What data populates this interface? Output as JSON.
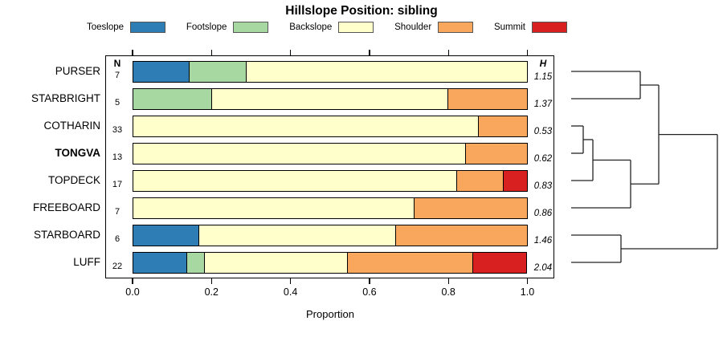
{
  "title": "Hillslope Position: sibling",
  "chart_data": {
    "type": "bar",
    "subtype": "horizontal-stacked-proportion",
    "title": "Hillslope Position: sibling",
    "xlabel": "Proportion",
    "xlim": [
      0,
      1
    ],
    "x_tick_labels": [
      "0.0",
      "0.2",
      "0.4",
      "0.6",
      "0.8",
      "1.0"
    ],
    "n_header": "N",
    "h_header": "H",
    "categories": [
      "Toeslope",
      "Footslope",
      "Backslope",
      "Shoulder",
      "Summit"
    ],
    "legend": [
      {
        "label": "Toeslope",
        "color": "#2E7EB5"
      },
      {
        "label": "Footslope",
        "color": "#A7D8A2"
      },
      {
        "label": "Backslope",
        "color": "#FFFFCC"
      },
      {
        "label": "Shoulder",
        "color": "#F9A75C"
      },
      {
        "label": "Summit",
        "color": "#D7201F"
      }
    ],
    "rows": [
      {
        "label": "PURSER",
        "bold": false,
        "n": "7",
        "h": "1.15",
        "segments": [
          {
            "category": "Toeslope",
            "value": 0.143
          },
          {
            "category": "Footslope",
            "value": 0.143
          },
          {
            "category": "Backslope",
            "value": 0.714
          }
        ]
      },
      {
        "label": "STARBRIGHT",
        "bold": false,
        "n": "5",
        "h": "1.37",
        "segments": [
          {
            "category": "Footslope",
            "value": 0.2
          },
          {
            "category": "Backslope",
            "value": 0.6
          },
          {
            "category": "Shoulder",
            "value": 0.2
          }
        ]
      },
      {
        "label": "COTHARIN",
        "bold": false,
        "n": "33",
        "h": "0.53",
        "segments": [
          {
            "category": "Backslope",
            "value": 0.879
          },
          {
            "category": "Shoulder",
            "value": 0.121
          }
        ]
      },
      {
        "label": "TONGVA",
        "bold": true,
        "n": "13",
        "h": "0.62",
        "segments": [
          {
            "category": "Backslope",
            "value": 0.846
          },
          {
            "category": "Shoulder",
            "value": 0.154
          }
        ]
      },
      {
        "label": "TOPDECK",
        "bold": false,
        "n": "17",
        "h": "0.83",
        "segments": [
          {
            "category": "Backslope",
            "value": 0.824
          },
          {
            "category": "Shoulder",
            "value": 0.118
          },
          {
            "category": "Summit",
            "value": 0.059
          }
        ]
      },
      {
        "label": "FREEBOARD",
        "bold": false,
        "n": "7",
        "h": "0.86",
        "segments": [
          {
            "category": "Backslope",
            "value": 0.714
          },
          {
            "category": "Shoulder",
            "value": 0.286
          }
        ]
      },
      {
        "label": "STARBOARD",
        "bold": false,
        "n": "6",
        "h": "1.46",
        "segments": [
          {
            "category": "Toeslope",
            "value": 0.167
          },
          {
            "category": "Backslope",
            "value": 0.5
          },
          {
            "category": "Shoulder",
            "value": 0.333
          }
        ]
      },
      {
        "label": "LUFF",
        "bold": false,
        "n": "22",
        "h": "2.04",
        "segments": [
          {
            "category": "Toeslope",
            "value": 0.136
          },
          {
            "category": "Footslope",
            "value": 0.045
          },
          {
            "category": "Backslope",
            "value": 0.364
          },
          {
            "category": "Shoulder",
            "value": 0.318
          },
          {
            "category": "Summit",
            "value": 0.136
          }
        ]
      }
    ],
    "dendrogram": {
      "leaf_start_x": 711,
      "merges": [
        {
          "id": "m1",
          "children": [
            {
              "leaf": 0
            },
            {
              "leaf": 1
            }
          ],
          "x": 797
        },
        {
          "id": "m2",
          "children": [
            {
              "leaf": 2
            },
            {
              "leaf": 3
            }
          ],
          "x": 726
        },
        {
          "id": "m3",
          "children": [
            {
              "merge": "m2"
            },
            {
              "leaf": 4
            }
          ],
          "x": 738
        },
        {
          "id": "m4",
          "children": [
            {
              "merge": "m3"
            },
            {
              "leaf": 5
            }
          ],
          "x": 785
        },
        {
          "id": "m5",
          "children": [
            {
              "merge": "m1"
            },
            {
              "merge": "m4"
            }
          ],
          "x": 820
        },
        {
          "id": "m6",
          "children": [
            {
              "leaf": 6
            },
            {
              "leaf": 7
            }
          ],
          "x": 773
        },
        {
          "id": "root",
          "children": [
            {
              "merge": "m5"
            },
            {
              "merge": "m6"
            }
          ],
          "x": 893
        }
      ]
    }
  }
}
